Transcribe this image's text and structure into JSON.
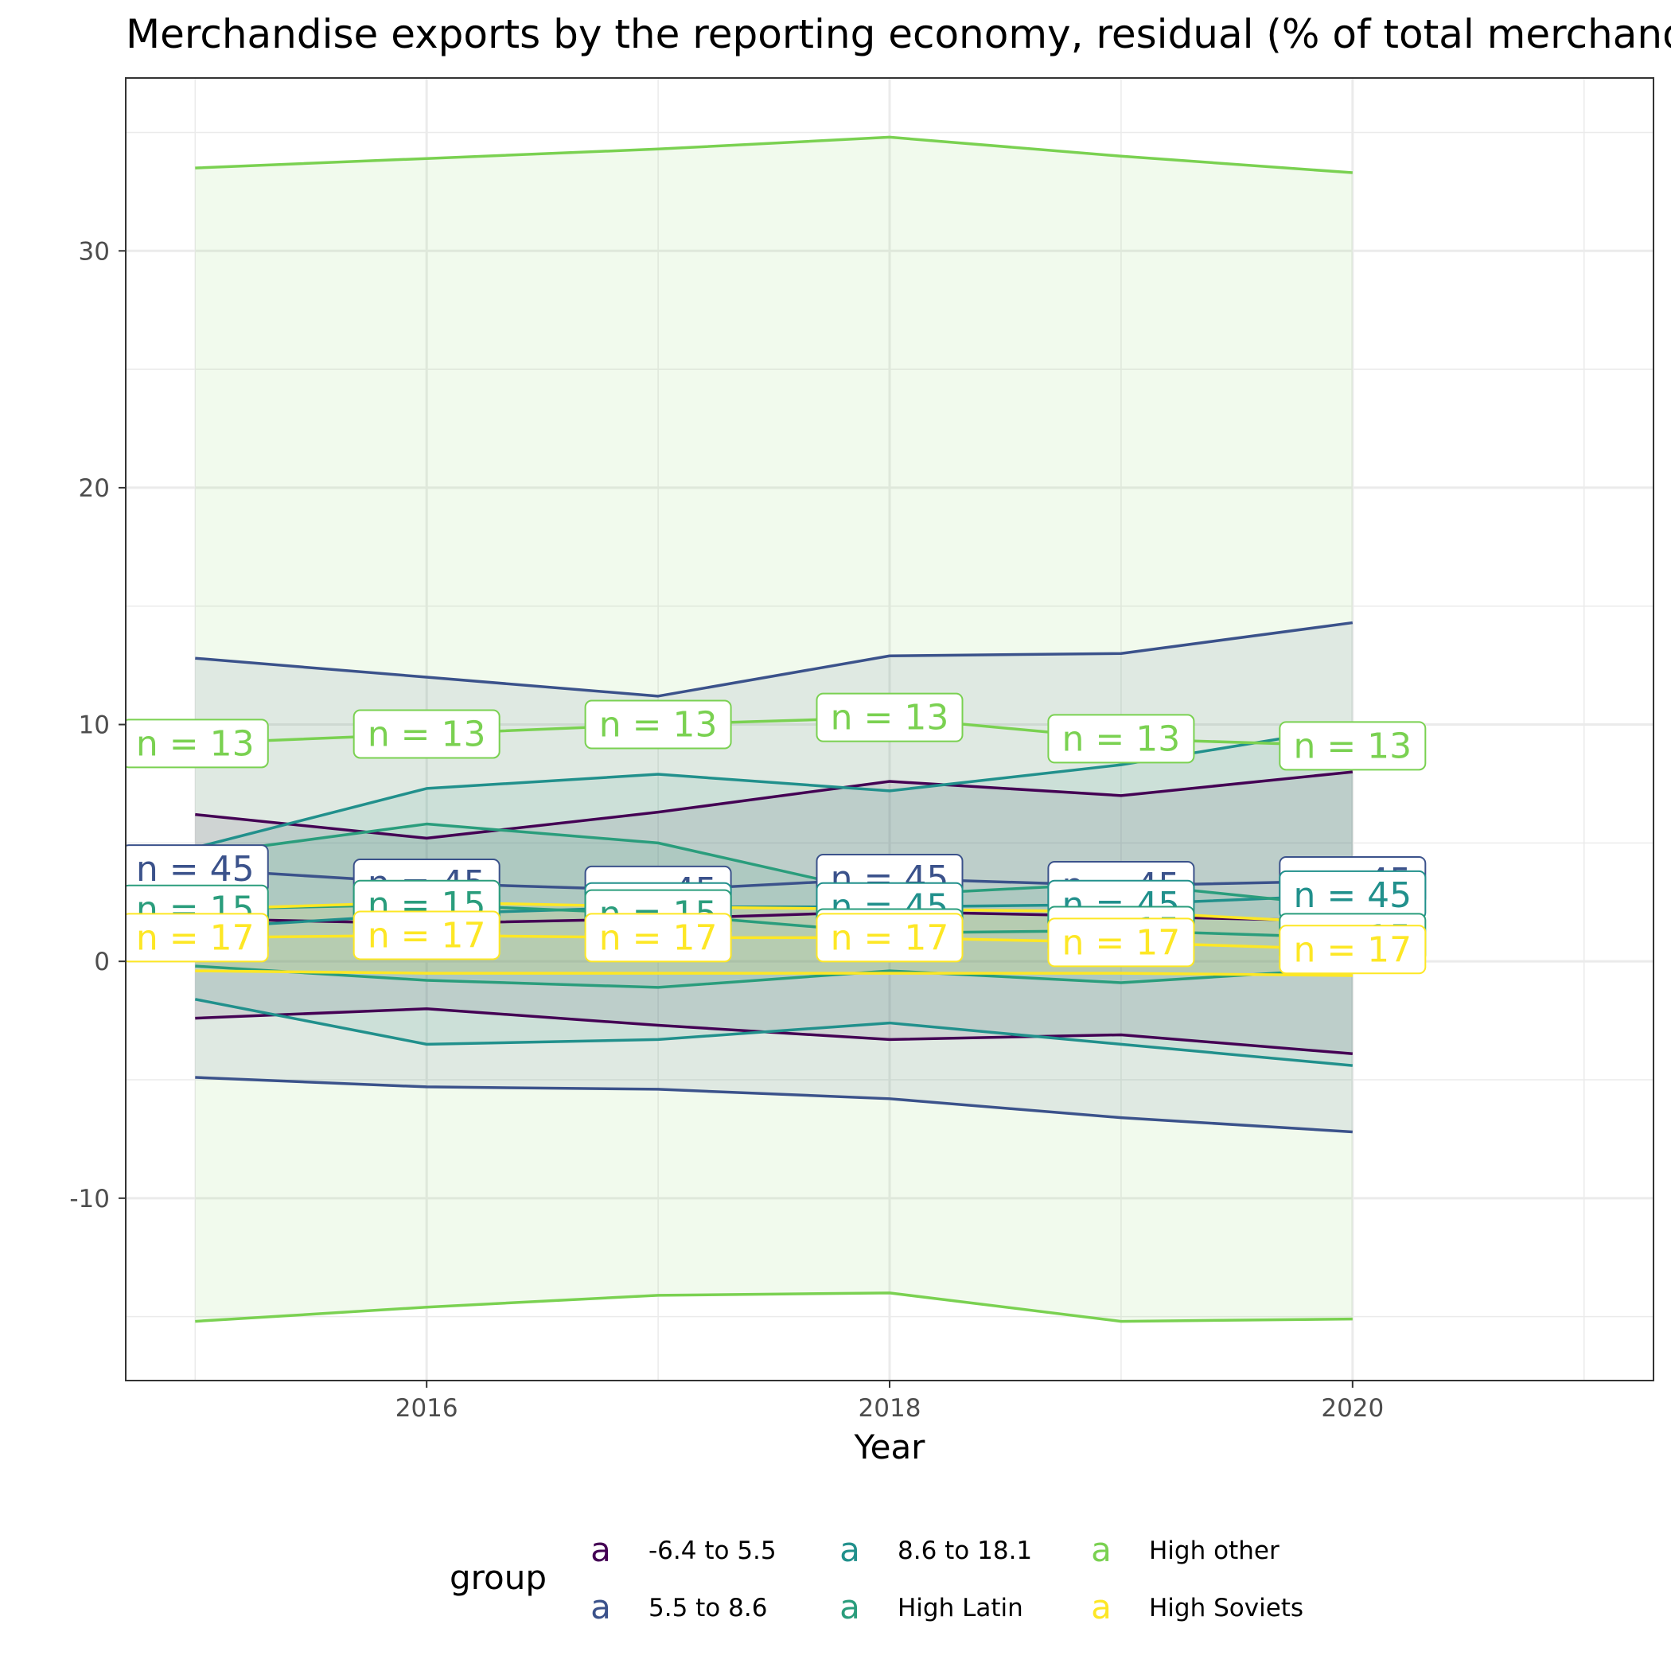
{
  "chart_data": {
    "type": "line",
    "title": "Merchandise exports by the reporting economy, residual (% of total merchandise exports)",
    "xlabel": "Year",
    "ylabel": "",
    "xlim": [
      2014.7,
      2021.3
    ],
    "ylim": [
      -17.7,
      37.3
    ],
    "x_ticks": [
      2016,
      2018,
      2020
    ],
    "y_ticks": [
      -10,
      0,
      10,
      20,
      30
    ],
    "x_grid_minor": [
      2015,
      2017,
      2019,
      2021
    ],
    "y_grid_minor": [
      -15,
      -5,
      5,
      15,
      25,
      35
    ],
    "grid": true,
    "legend": {
      "title": "group",
      "position": "bottom",
      "key_glyph": "a"
    },
    "x": [
      2015,
      2016,
      2017,
      2018,
      2019,
      2020
    ],
    "series": [
      {
        "name": "-6.4 to 5.5",
        "color": "#440154",
        "upper": [
          6.2,
          5.2,
          6.3,
          7.6,
          7.0,
          8.0
        ],
        "mid": [
          1.8,
          1.6,
          1.8,
          2.1,
          1.9,
          1.7
        ],
        "lower": [
          -2.4,
          -2.0,
          -2.7,
          -3.3,
          -3.1,
          -3.9
        ],
        "n": 45,
        "labels_visible": false
      },
      {
        "name": "5.5 to 8.6",
        "color": "#3B528B",
        "upper": [
          12.8,
          12.0,
          11.2,
          12.9,
          13.0,
          14.3
        ],
        "mid": [
          3.9,
          3.3,
          3.0,
          3.5,
          3.2,
          3.4
        ],
        "lower": [
          -4.9,
          -5.3,
          -5.4,
          -5.8,
          -6.6,
          -7.2
        ],
        "n": 45,
        "labels_visible": true
      },
      {
        "name": "8.6 to 18.1",
        "color": "#21908C",
        "upper": [
          4.8,
          7.3,
          7.9,
          7.2,
          8.3,
          9.9
        ],
        "mid": [
          1.4,
          2.0,
          2.3,
          2.3,
          2.4,
          2.8
        ],
        "lower": [
          -1.6,
          -3.5,
          -3.3,
          -2.6,
          -3.5,
          -4.4
        ],
        "n": 45,
        "labels_visible": true
      },
      {
        "name": "High Latin",
        "color": "#2A9D7C",
        "upper": [
          4.5,
          5.8,
          5.0,
          2.8,
          3.3,
          2.3
        ],
        "mid": [
          2.2,
          2.4,
          2.0,
          1.2,
          1.3,
          1.0
        ],
        "lower": [
          -0.2,
          -0.8,
          -1.1,
          -0.4,
          -0.9,
          -0.3
        ],
        "n": 15,
        "labels_visible": true
      },
      {
        "name": "High other",
        "color": "#7AD151",
        "upper": [
          33.5,
          33.9,
          34.3,
          34.8,
          34.0,
          33.3
        ],
        "mid": [
          9.2,
          9.6,
          10.0,
          10.3,
          9.4,
          9.1
        ],
        "lower": [
          -15.2,
          -14.6,
          -14.1,
          -14.0,
          -15.2,
          -15.1
        ],
        "n": 13,
        "labels_visible": true
      },
      {
        "name": "High Soviets",
        "color": "#FDE725",
        "upper": [
          2.2,
          2.5,
          2.3,
          2.2,
          2.1,
          1.6
        ],
        "mid": [
          1.0,
          1.1,
          1.0,
          1.0,
          0.8,
          0.5
        ],
        "lower": [
          -0.4,
          -0.5,
          -0.5,
          -0.5,
          -0.5,
          -0.6
        ],
        "n": 17,
        "labels_visible": true
      }
    ]
  }
}
